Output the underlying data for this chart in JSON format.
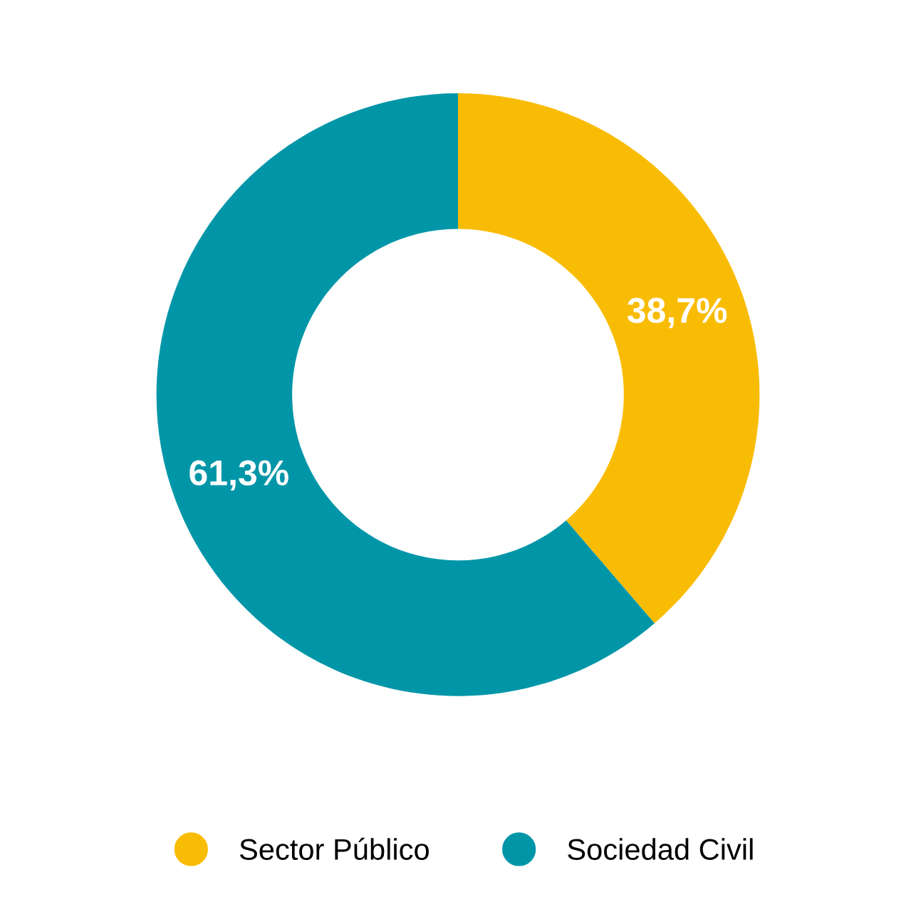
{
  "chart_data": {
    "type": "donut",
    "categories": [
      "Sector Público",
      "Sociedad Civil"
    ],
    "values": [
      38.7,
      61.3
    ],
    "colors": [
      "#f9bc04",
      "#0096a8"
    ],
    "value_labels": [
      "38,7%",
      "61,3%"
    ],
    "legend": "bottom"
  }
}
